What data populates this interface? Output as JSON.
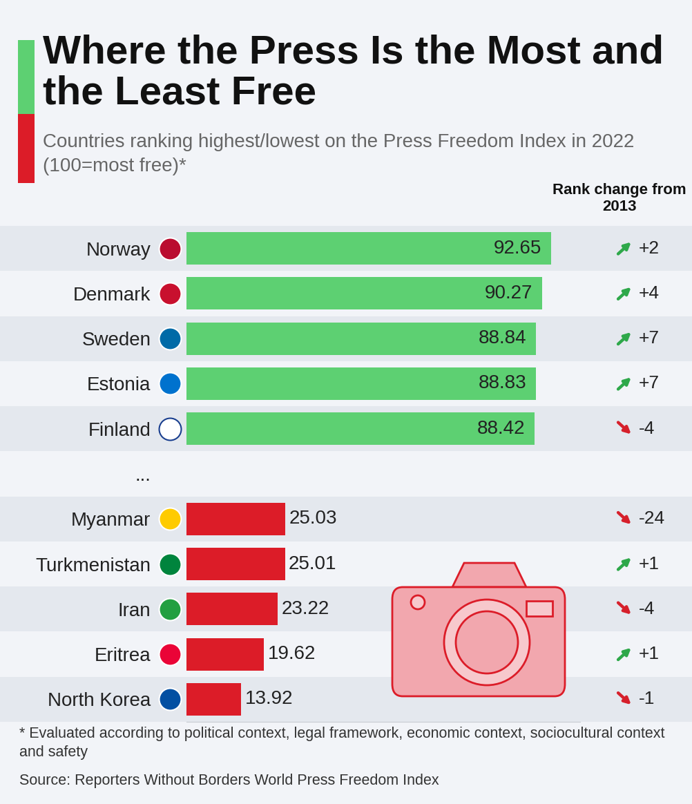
{
  "chart_data": {
    "type": "bar",
    "orientation": "horizontal",
    "title": "Where the Press Is the Most and the Least Free",
    "subtitle": "Countries ranking highest/lowest on the Press Freedom Index in 2022 (100=most free)*",
    "categories": [
      "Norway",
      "Denmark",
      "Sweden",
      "Estonia",
      "Finland",
      "...",
      "Myanmar",
      "Turkmenistan",
      "Iran",
      "Eritrea",
      "North Korea"
    ],
    "values": [
      92.65,
      90.27,
      88.84,
      88.83,
      88.42,
      null,
      25.03,
      25.01,
      23.22,
      19.62,
      13.92
    ],
    "colors": [
      "#5dd072",
      "#5dd072",
      "#5dd072",
      "#5dd072",
      "#5dd072",
      null,
      "#dc1c28",
      "#dc1c28",
      "#dc1c28",
      "#dc1c28",
      "#dc1c28"
    ],
    "rank_change_title": "Rank change from 2013",
    "rank_change": [
      "+2",
      "+4",
      "+7",
      "+7",
      "-4",
      null,
      "-24",
      "+1",
      "-4",
      "+1",
      "-1"
    ],
    "xlim": [
      0,
      100
    ],
    "data_labels": true,
    "tick_labels": "y",
    "footnote": "* Evaluated according to political context, legal framework, economic context, sociocultural context and safety",
    "source": "Source: Reporters Without Borders World Press Freedom Index"
  }
}
